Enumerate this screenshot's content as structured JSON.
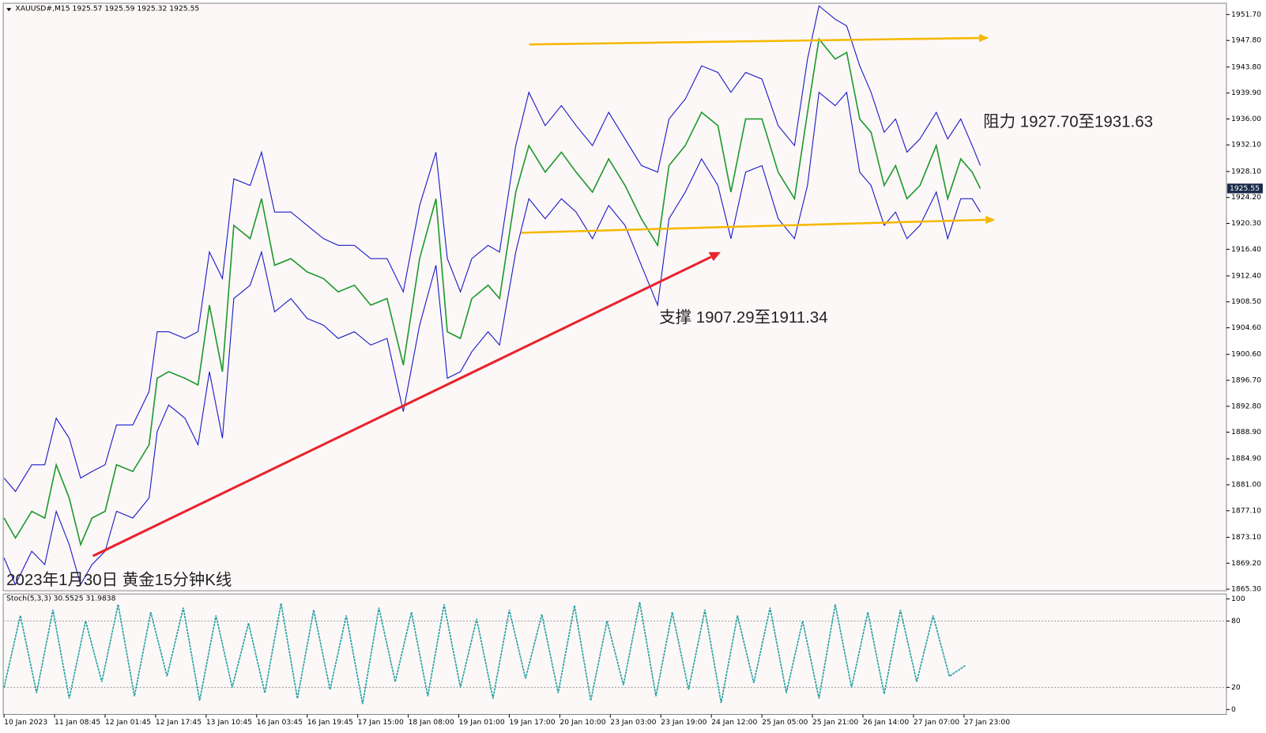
{
  "chart_data": [
    {
      "type": "line",
      "title": "XAUUSD#,M15  1925.57 1925.59 1925.32 1925.55",
      "annotations": [
        "2023年1月30日 黄金15分钟K线",
        "阻力 1927.70至1931.63",
        "支撑 1907.29至1911.34"
      ],
      "x": [
        0,
        7,
        17,
        25,
        32,
        40,
        47,
        54,
        62,
        69,
        79,
        89,
        94,
        101,
        111,
        119,
        126,
        134,
        141,
        151,
        158,
        166,
        176,
        186,
        196,
        205,
        215,
        225,
        235,
        245,
        255,
        265,
        272,
        280,
        287,
        297,
        304,
        314,
        322,
        332,
        342,
        351,
        361,
        371,
        381,
        391,
        401,
        408,
        418,
        428,
        438,
        446,
        455,
        465,
        475,
        485,
        493,
        500,
        510,
        517,
        525,
        532,
        540,
        547,
        554,
        562,
        572,
        579,
        587,
        594,
        599
      ],
      "xlim": [
        0,
        750
      ],
      "xticks": [
        {
          "value": 0,
          "label": "10 Jan 2023"
        },
        {
          "value": 31,
          "label": "11 Jan 08:45"
        },
        {
          "value": 62,
          "label": "12 Jan 01:45"
        },
        {
          "value": 93,
          "label": "12 Jan 17:45"
        },
        {
          "value": 124,
          "label": "13 Jan 10:45"
        },
        {
          "value": 155,
          "label": "16 Jan 03:45"
        },
        {
          "value": 186,
          "label": "16 Jan 19:45"
        },
        {
          "value": 217,
          "label": "17 Jan 15:00"
        },
        {
          "value": 248,
          "label": "18 Jan 08:00"
        },
        {
          "value": 279,
          "label": "19 Jan 01:00"
        },
        {
          "value": 310,
          "label": "19 Jan 17:00"
        },
        {
          "value": 341,
          "label": "20 Jan 10:00"
        },
        {
          "value": 372,
          "label": "23 Jan 03:00"
        },
        {
          "value": 403,
          "label": "23 Jan 19:00"
        },
        {
          "value": 434,
          "label": "24 Jan 12:00"
        },
        {
          "value": 465,
          "label": "25 Jan 05:00"
        },
        {
          "value": 496,
          "label": "25 Jan 21:00"
        },
        {
          "value": 527,
          "label": "26 Jan 14:00"
        },
        {
          "value": 558,
          "label": "27 Jan 07:00"
        },
        {
          "value": 589,
          "label": "27 Jan 23:00"
        }
      ],
      "ylim": [
        1865.06,
        1953.4
      ],
      "yticks": [
        {
          "value": 1951.7,
          "label": "1951.70"
        },
        {
          "value": 1947.8,
          "label": "1947.80"
        },
        {
          "value": 1943.8,
          "label": "1943.80"
        },
        {
          "value": 1939.9,
          "label": "1939.90"
        },
        {
          "value": 1936,
          "label": "1936.00"
        },
        {
          "value": 1932.1,
          "label": "1932.10"
        },
        {
          "value": 1928.1,
          "label": "1928.10"
        },
        {
          "value": 1924.2,
          "label": "1924.20"
        },
        {
          "value": 1920.3,
          "label": "1920.30"
        },
        {
          "value": 1916.4,
          "label": "1916.40"
        },
        {
          "value": 1912.4,
          "label": "1912.40"
        },
        {
          "value": 1908.5,
          "label": "1908.50"
        },
        {
          "value": 1904.6,
          "label": "1904.60"
        },
        {
          "value": 1900.6,
          "label": "1900.60"
        },
        {
          "value": 1896.7,
          "label": "1896.70"
        },
        {
          "value": 1892.8,
          "label": "1892.80"
        },
        {
          "value": 1888.9,
          "label": "1888.90"
        },
        {
          "value": 1884.9,
          "label": "1884.90"
        },
        {
          "value": 1881,
          "label": "1881.00"
        },
        {
          "value": 1877.1,
          "label": "1877.10"
        },
        {
          "value": 1873.1,
          "label": "1873.10"
        },
        {
          "value": 1869.2,
          "label": "1869.20"
        },
        {
          "value": 1865.3,
          "label": "1865.30"
        }
      ],
      "series": [
        {
          "color": "#1f9a2e",
          "values": [
            1876,
            1873,
            1877,
            1876,
            1884,
            1879,
            1872,
            1876,
            1877,
            1884,
            1883,
            1887,
            1897,
            1898,
            1897,
            1896,
            1908,
            1898,
            1920,
            1918,
            1924,
            1914,
            1915,
            1913,
            1912,
            1910,
            1911,
            1908,
            1909,
            1899,
            1915,
            1924,
            1904,
            1903,
            1909,
            1911,
            1909,
            1925,
            1932,
            1928,
            1931,
            1928,
            1925,
            1930,
            1926,
            1921,
            1917,
            1929,
            1932,
            1937,
            1935,
            1925,
            1936,
            1936,
            1928,
            1924,
            1937,
            1948,
            1945,
            1946,
            1936,
            1934,
            1926,
            1929,
            1924,
            1926,
            1932,
            1924,
            1930,
            1928,
            1925.55
          ]
        },
        {
          "color": "#1c1cc8",
          "values": [
            1882,
            1880,
            1884,
            1884,
            1891,
            1888,
            1882,
            1883,
            1884,
            1890,
            1890,
            1895,
            1904,
            1904,
            1903,
            1904,
            1916,
            1912,
            1927,
            1926,
            1931,
            1922,
            1922,
            1920,
            1918,
            1917,
            1917,
            1915,
            1915,
            1910,
            1923,
            1931,
            1915,
            1910,
            1915,
            1917,
            1916,
            1932,
            1940,
            1935,
            1938,
            1935,
            1932,
            1937,
            1933,
            1929,
            1928,
            1936,
            1939,
            1944,
            1943,
            1940,
            1943,
            1942,
            1935,
            1932,
            1945,
            1953,
            1951,
            1950,
            1944,
            1940,
            1934,
            1936,
            1931,
            1933,
            1937,
            1933,
            1936,
            1932,
            1929
          ]
        },
        {
          "color": "#1c1cc8",
          "values": [
            1870,
            1866,
            1871,
            1869,
            1877,
            1872,
            1866,
            1869,
            1871,
            1877,
            1876,
            1879,
            1889,
            1893,
            1891,
            1887,
            1898,
            1888,
            1909,
            1911,
            1916,
            1907,
            1909,
            1906,
            1905,
            1903,
            1904,
            1902,
            1903,
            1892,
            1905,
            1914,
            1897,
            1898,
            1901,
            1904,
            1902,
            1916,
            1924,
            1921,
            1924,
            1922,
            1918,
            1923,
            1920,
            1914,
            1908,
            1921,
            1925,
            1930,
            1926,
            1918,
            1928,
            1929,
            1921,
            1918,
            1926,
            1940,
            1938,
            1940,
            1928,
            1926,
            1920,
            1922,
            1918,
            1920,
            1925,
            1918,
            1924,
            1924,
            1922
          ]
        }
      ]
    },
    {
      "type": "line",
      "title": "Stoch(5,3,3) 30.5525 31.9838",
      "x": [
        0,
        10,
        20,
        30,
        40,
        50,
        60,
        70,
        80,
        90,
        100,
        110,
        120,
        130,
        140,
        150,
        160,
        170,
        180,
        190,
        200,
        210,
        220,
        230,
        240,
        250,
        260,
        270,
        280,
        290,
        300,
        310,
        320,
        330,
        340,
        350,
        360,
        370,
        380,
        390,
        400,
        410,
        420,
        430,
        440,
        450,
        460,
        470,
        480,
        490,
        500,
        510,
        520,
        530,
        540,
        550,
        560,
        570,
        580,
        590
      ],
      "ylim": [
        -4.4,
        104.4
      ],
      "yticks": [
        100,
        80,
        20,
        0
      ],
      "series": [
        {
          "color": "#20a0a0",
          "values": [
            20,
            85,
            15,
            90,
            10,
            80,
            25,
            95,
            12,
            88,
            30,
            92,
            8,
            85,
            20,
            78,
            15,
            96,
            10,
            90,
            18,
            85,
            5,
            92,
            25,
            88,
            12,
            95,
            20,
            82,
            10,
            90,
            28,
            86,
            15,
            94,
            8,
            80,
            22,
            97,
            12,
            88,
            18,
            90,
            6,
            85,
            24,
            92,
            15,
            80,
            10,
            95,
            20,
            88,
            14,
            90,
            25,
            85,
            30,
            40
          ]
        }
      ]
    }
  ]
}
